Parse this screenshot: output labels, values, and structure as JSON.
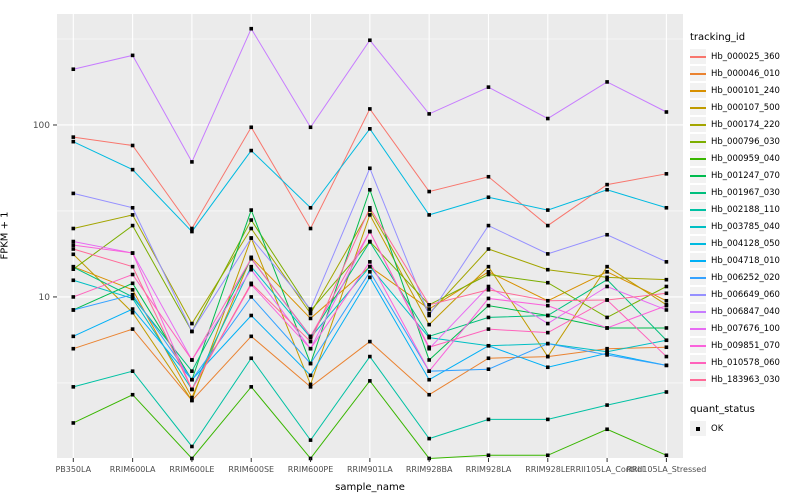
{
  "chart_data": {
    "type": "line",
    "xlabel": "sample_name",
    "ylabel": "FPKM + 1",
    "y_scale": "log10",
    "y_domain": [
      1.157,
      442
    ],
    "y_tick_values": [
      100,
      10
    ],
    "y_tick_labels": [
      "100",
      "10"
    ],
    "y_minor_values": [
      316.23,
      31.62,
      3.162
    ],
    "grid": "major-and-minor-white-on-grey",
    "legend": {
      "title": "tracking_id",
      "position": "right"
    },
    "shape_legend": {
      "title": "quant_status",
      "entries": [
        {
          "label": "OK",
          "shape": "filled-square"
        }
      ]
    },
    "panel": {
      "bg": "#EBEBEB",
      "grid_color": "#FFFFFF",
      "point_color": "#000000",
      "tick_color": "#333333",
      "tick_label_color": "#4D4D4D"
    },
    "categories": [
      "PB350LA",
      "RRIM600LA",
      "RRIM600LE",
      "RRIM600SE",
      "RRIM600PE",
      "RRIM901LA",
      "RRIM928BA",
      "RRIM928LA",
      "RRIM928LE",
      "RRII105LA_Control",
      "RRII105LA_Stressed"
    ],
    "series": [
      {
        "name": "Hb_000025_360",
        "color": "#F8766D",
        "values": [
          85,
          76,
          25,
          97,
          25,
          124,
          41,
          50,
          26,
          45,
          52
        ]
      },
      {
        "name": "Hb_000046_010",
        "color": "#EA8331",
        "values": [
          5.0,
          6.5,
          2.5,
          5.9,
          3.0,
          5.5,
          2.7,
          4.4,
          4.5,
          5.0,
          5.1
        ]
      },
      {
        "name": "Hb_000101_240",
        "color": "#D89000",
        "values": [
          15,
          11,
          2.6,
          17,
          7.5,
          15,
          8.5,
          14,
          9.5,
          14,
          9.5
        ]
      },
      {
        "name": "Hb_000107_500",
        "color": "#C09B00",
        "values": [
          17.7,
          8.1,
          2.5,
          22,
          3.1,
          30,
          6.9,
          15,
          4.5,
          15,
          9
        ]
      },
      {
        "name": "Hb_000174_220",
        "color": "#A3A500",
        "values": [
          25,
          30,
          7.0,
          25,
          8.0,
          32,
          8.0,
          19,
          14.4,
          13,
          12.6
        ]
      },
      {
        "name": "Hb_000796_030",
        "color": "#7CAE00",
        "values": [
          14.5,
          26,
          6.3,
          28,
          8.3,
          21,
          9.0,
          13.5,
          12.1,
          7.6,
          11.5
        ]
      },
      {
        "name": "Hb_000959_040",
        "color": "#39B600",
        "values": [
          1.85,
          2.7,
          1.15,
          3.0,
          1.15,
          3.25,
          1.15,
          1.2,
          1.2,
          1.7,
          1.2
        ]
      },
      {
        "name": "Hb_001247_070",
        "color": "#00BB4E",
        "values": [
          8.4,
          12,
          3.3,
          32,
          4.1,
          42,
          4.3,
          8.9,
          7.8,
          6.6,
          6.6
        ]
      },
      {
        "name": "Hb_001967_030",
        "color": "#00BF7D",
        "values": [
          14.9,
          10,
          3.7,
          16.7,
          5.9,
          20.9,
          5.9,
          7.6,
          7.8,
          12.6,
          5.6
        ]
      },
      {
        "name": "Hb_002188_110",
        "color": "#00C1A3",
        "values": [
          3.0,
          3.7,
          1.35,
          4.4,
          1.47,
          4.5,
          1.5,
          1.94,
          1.94,
          2.35,
          2.8
        ]
      },
      {
        "name": "Hb_003785_040",
        "color": "#00BFC4",
        "values": [
          12.5,
          9.8,
          2.9,
          15,
          5.8,
          15,
          5.8,
          5.2,
          5.35,
          4.8,
          5.6
        ]
      },
      {
        "name": "Hb_004128_050",
        "color": "#00BAE0",
        "values": [
          80,
          55,
          24,
          71,
          33,
          95,
          30,
          38,
          32,
          42,
          33
        ]
      },
      {
        "name": "Hb_004718_010",
        "color": "#00B0F6",
        "values": [
          5.9,
          8.5,
          3.3,
          7.8,
          3.5,
          13,
          3.3,
          5.2,
          3.9,
          4.7,
          4.0
        ]
      },
      {
        "name": "Hb_006252_020",
        "color": "#35A2FF",
        "values": [
          8.4,
          10.3,
          3.3,
          10,
          4.1,
          14,
          3.7,
          3.8,
          5.35,
          4.6,
          4.0
        ]
      },
      {
        "name": "Hb_006649_060",
        "color": "#9590FF",
        "values": [
          40,
          33,
          6.3,
          22,
          8.5,
          56,
          7.8,
          26,
          17.8,
          23,
          16
        ]
      },
      {
        "name": "Hb_006847_040",
        "color": "#C77CFF",
        "values": [
          211,
          254,
          61,
          363,
          97,
          311,
          116,
          166,
          109,
          178,
          119
        ]
      },
      {
        "name": "Hb_007676_100",
        "color": "#E76BF3",
        "values": [
          21,
          18,
          4.3,
          14.4,
          5.0,
          24,
          5.0,
          11.5,
          7.0,
          11.5,
          8.4
        ]
      },
      {
        "name": "Hb_009851_070",
        "color": "#FA62DB",
        "values": [
          20,
          18,
          2.9,
          11.8,
          5.0,
          16,
          3.7,
          9.8,
          8.9,
          6.6,
          8.9
        ]
      },
      {
        "name": "Hb_010578_060",
        "color": "#FF62BC",
        "values": [
          10,
          13.5,
          4.3,
          16.7,
          5.9,
          24,
          5.1,
          6.5,
          6.2,
          9.6,
          4.5
        ]
      },
      {
        "name": "Hb_183963_030",
        "color": "#FF6A98",
        "values": [
          19,
          15,
          2.9,
          12,
          5.5,
          33,
          9.0,
          11,
          9.5,
          9.6,
          10.5
        ]
      }
    ]
  }
}
